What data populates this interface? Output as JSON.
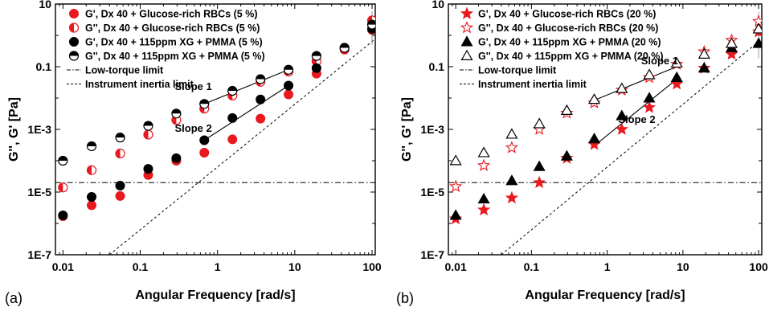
{
  "chart_data": [
    {
      "type": "scatter",
      "panel_label": "(a)",
      "xlabel": "Angular Frequency [rad/s]",
      "ylabel": "G'', G' [Pa]",
      "x_scale": "log",
      "y_scale": "log",
      "xlim": [
        0.008,
        110
      ],
      "ylim": [
        1e-07,
        10
      ],
      "x_ticks": [
        {
          "v": 0.01,
          "label": "0.01"
        },
        {
          "v": 0.1,
          "label": "0.1"
        },
        {
          "v": 1,
          "label": "1"
        },
        {
          "v": 10,
          "label": "10"
        },
        {
          "v": 100,
          "label": "100"
        }
      ],
      "y_ticks": [
        {
          "v": 1e-07,
          "label": "1E-7"
        },
        {
          "v": 1e-05,
          "label": "1E-5"
        },
        {
          "v": 0.001,
          "label": "1E-3"
        },
        {
          "v": 0.1,
          "label": "0.1"
        },
        {
          "v": 10,
          "label": "10"
        }
      ],
      "legend_position": "top-left",
      "series": [
        {
          "name": "G', Dx 40 + Glucose-rich RBCs (5 %)",
          "marker": "circle",
          "fill": "full",
          "color": "#e8191f",
          "x": [
            0.01,
            0.0235,
            0.055,
            0.127,
            0.293,
            0.675,
            1.56,
            3.6,
            8.3,
            19.1,
            44,
            100
          ],
          "y": [
            1.7e-06,
            3.8e-06,
            7.5e-06,
            3.5e-05,
            0.0001,
            0.00018,
            0.00048,
            0.0022,
            0.013,
            0.06,
            0.35,
            1.5
          ]
        },
        {
          "name": "G'', Dx 40 + Glucose-rich RBCs (5 %)",
          "marker": "circle",
          "fill": "half",
          "color": "#e8191f",
          "x": [
            0.01,
            0.0235,
            0.055,
            0.127,
            0.293,
            0.675,
            1.56,
            3.6,
            8.3,
            19.1,
            44,
            100
          ],
          "y": [
            1.4e-05,
            5e-05,
            0.00017,
            0.00068,
            0.002,
            0.0046,
            0.012,
            0.033,
            0.07,
            0.15,
            0.4,
            3.0
          ]
        },
        {
          "name": "G', Dx 40 + 115ppm XG + PMMA (5 %)",
          "marker": "circle",
          "fill": "full",
          "color": "#000000",
          "x": [
            0.01,
            0.0235,
            0.055,
            0.127,
            0.293,
            0.675,
            1.56,
            3.6,
            8.3,
            19.1,
            44,
            100
          ],
          "y": [
            1.8e-06,
            7e-06,
            1.6e-05,
            5.5e-05,
            0.00012,
            0.00045,
            0.0023,
            0.009,
            0.025,
            0.09,
            0.4,
            1.6
          ]
        },
        {
          "name": "G'', Dx 40 + 115ppm XG + PMMA (5 %)",
          "marker": "circle",
          "fill": "half-top",
          "color": "#000000",
          "x": [
            0.01,
            0.0235,
            0.055,
            0.127,
            0.293,
            0.675,
            1.56,
            3.6,
            8.3,
            19.1,
            44,
            100
          ],
          "y": [
            0.0001,
            0.00029,
            0.00055,
            0.0013,
            0.0032,
            0.0065,
            0.017,
            0.04,
            0.08,
            0.22,
            0.4,
            2.2
          ]
        }
      ],
      "legend_lines": [
        {
          "name": "Low-torque limit",
          "style": "dash-dot"
        },
        {
          "name": "Instrument inertia limit",
          "style": "dashed"
        }
      ],
      "annotations": [
        {
          "text": "Slope 1",
          "x": 0.28,
          "y": 0.018
        },
        {
          "text": "Slope 2",
          "x": 0.28,
          "y": 0.00085
        }
      ],
      "slope_lines": [
        {
          "x": [
            0.675,
            8.3
          ],
          "y": [
            0.0065,
            0.08
          ]
        },
        {
          "x": [
            0.675,
            8.3
          ],
          "y": [
            0.00045,
            0.025
          ]
        }
      ],
      "low_torque_limit": 2e-05,
      "inertia_limit": {
        "x": [
          0.04,
          105
        ],
        "y": [
          1e-07,
          0.7
        ]
      }
    },
    {
      "type": "scatter",
      "panel_label": "(b)",
      "xlabel": "Angular Frequency [rad/s]",
      "ylabel": "G'', G' [Pa]",
      "x_scale": "log",
      "y_scale": "log",
      "xlim": [
        0.008,
        110
      ],
      "ylim": [
        1e-07,
        10
      ],
      "x_ticks": [
        {
          "v": 0.01,
          "label": "0.01"
        },
        {
          "v": 0.1,
          "label": "0.1"
        },
        {
          "v": 1,
          "label": "1"
        },
        {
          "v": 10,
          "label": "10"
        },
        {
          "v": 100,
          "label": "100"
        }
      ],
      "y_ticks": [
        {
          "v": 1e-07,
          "label": "1E-7"
        },
        {
          "v": 1e-05,
          "label": "1E-5"
        },
        {
          "v": 0.001,
          "label": "1E-3"
        },
        {
          "v": 0.1,
          "label": "0.1"
        },
        {
          "v": 10,
          "label": "10"
        }
      ],
      "legend_position": "top-left",
      "series": [
        {
          "name": "G', Dx 40 + Glucose-rich RBCs (20 %)",
          "marker": "star",
          "fill": "full",
          "color": "#e8191f",
          "x": [
            0.01,
            0.0235,
            0.055,
            0.127,
            0.293,
            0.675,
            1.56,
            3.6,
            8.3,
            19.1,
            44,
            100
          ],
          "y": [
            1.4e-06,
            2.7e-06,
            6.5e-06,
            2e-05,
            0.00012,
            0.00033,
            0.001,
            0.005,
            0.028,
            0.09,
            0.25,
            1.3
          ]
        },
        {
          "name": "G'', Dx 40 + Glucose-rich RBCs (20 %)",
          "marker": "star",
          "fill": "open",
          "color": "#e8191f",
          "x": [
            0.01,
            0.0235,
            0.055,
            0.127,
            0.293,
            0.675,
            1.56,
            3.6,
            8.3,
            19.1,
            44,
            100
          ],
          "y": [
            1.5e-05,
            7e-05,
            0.00026,
            0.001,
            0.0033,
            0.007,
            0.018,
            0.045,
            0.12,
            0.3,
            0.7,
            2.8
          ]
        },
        {
          "name": "G', Dx 40 + 115ppm XG + PMMA (20 %)",
          "marker": "triangle",
          "fill": "full",
          "color": "#000000",
          "x": [
            0.01,
            0.0235,
            0.055,
            0.127,
            0.293,
            0.675,
            1.56,
            3.6,
            8.3,
            19.1,
            44,
            100
          ],
          "y": [
            1.8e-06,
            6e-06,
            2.3e-05,
            6.5e-05,
            0.00014,
            0.0005,
            0.0027,
            0.01,
            0.045,
            0.09,
            0.4,
            0.55
          ]
        },
        {
          "name": "G'', Dx 40 + 115ppm XG + PMMA (20 %)",
          "marker": "triangle",
          "fill": "open",
          "color": "#000000",
          "x": [
            0.01,
            0.0235,
            0.055,
            0.127,
            0.293,
            0.675,
            1.56,
            3.6,
            8.3,
            19.1,
            44,
            100
          ],
          "y": [
            0.0001,
            0.00018,
            0.0007,
            0.0015,
            0.004,
            0.009,
            0.02,
            0.055,
            0.13,
            0.25,
            0.55,
            1.6
          ]
        }
      ],
      "legend_lines": [
        {
          "name": "Low-torque limit",
          "style": "dash-dot"
        },
        {
          "name": "Instrument inertia limit",
          "style": "dashed"
        }
      ],
      "annotations": [
        {
          "text": "Slope 1",
          "x": 2.8,
          "y": 0.12
        },
        {
          "text": "Slope 2",
          "x": 1.4,
          "y": 0.0016
        }
      ],
      "slope_lines": [
        {
          "x": [
            0.675,
            8.3
          ],
          "y": [
            0.0085,
            0.1
          ]
        },
        {
          "x": [
            0.675,
            8.3
          ],
          "y": [
            0.0003,
            0.04
          ]
        }
      ],
      "low_torque_limit": 2e-05,
      "inertia_limit": {
        "x": [
          0.04,
          105
        ],
        "y": [
          1e-07,
          0.7
        ]
      }
    }
  ]
}
